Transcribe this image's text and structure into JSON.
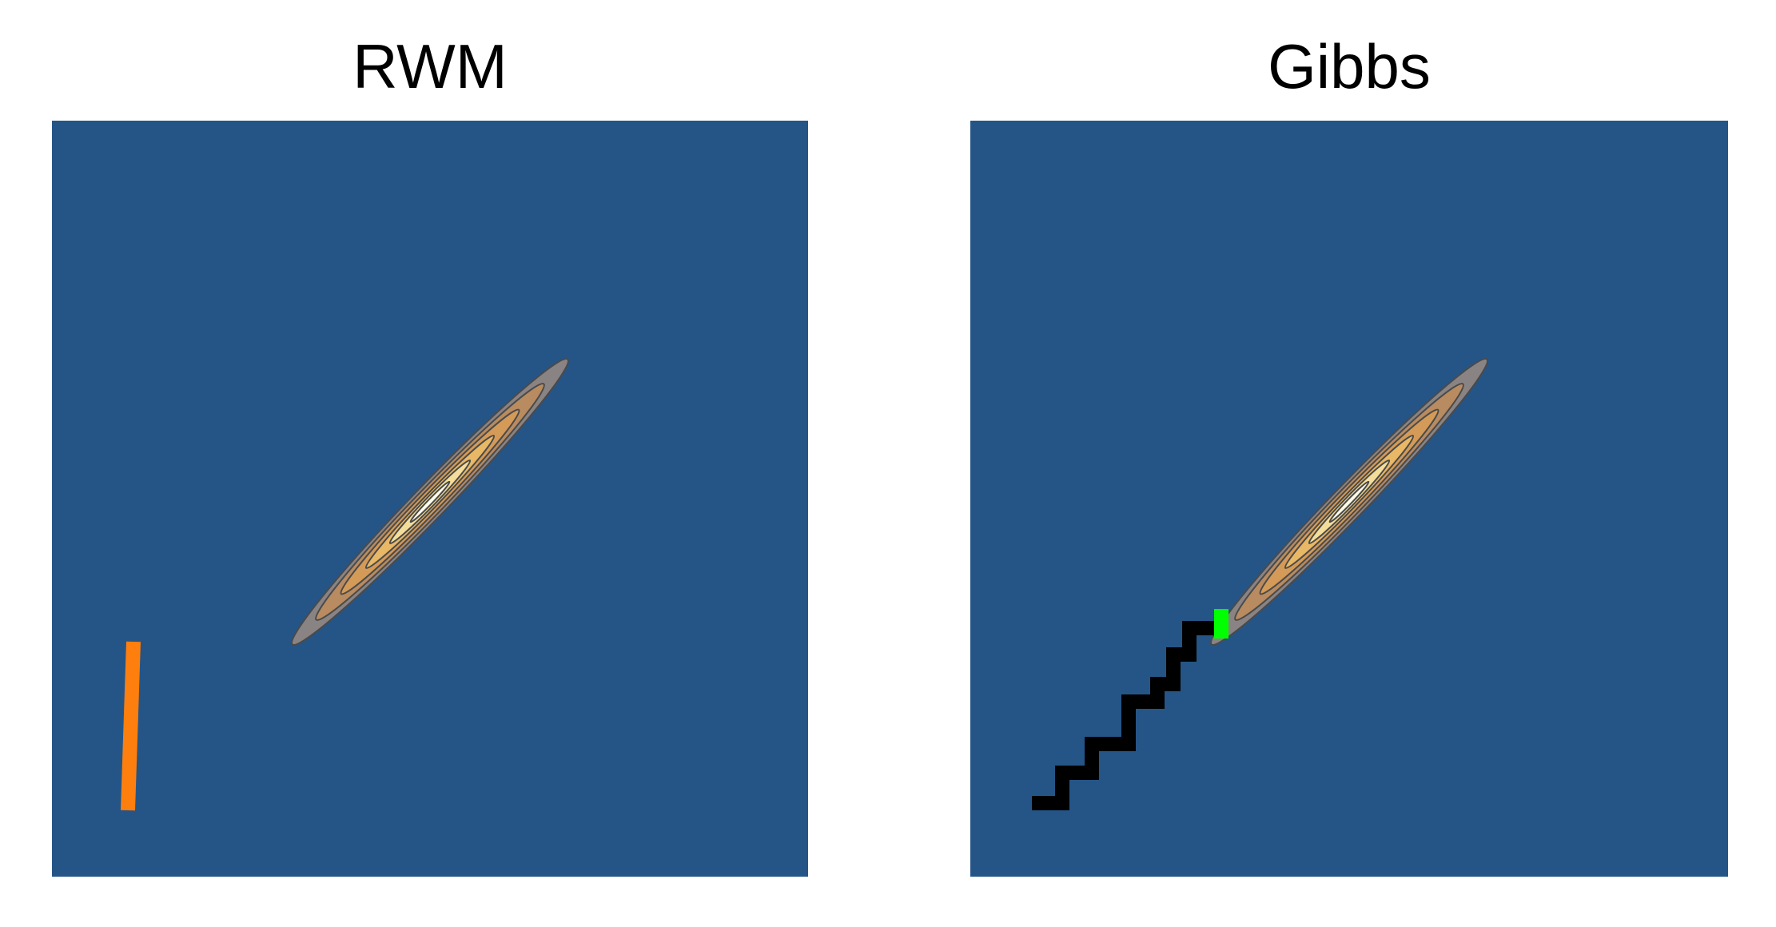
{
  "figure": {
    "panels": [
      {
        "title": "RWM",
        "background_color": "#255587",
        "trace_color": "#ff7f0e"
      },
      {
        "title": "Gibbs",
        "background_color": "#255587",
        "trace_color": "#000000",
        "current_point_color": "#00ff00"
      }
    ],
    "contour_colors": [
      "#8a8384",
      "#b88b60",
      "#d49a57",
      "#e8b866",
      "#f4dd9a",
      "#fffbe8"
    ],
    "contour_line_color": "#4a4a4a"
  }
}
